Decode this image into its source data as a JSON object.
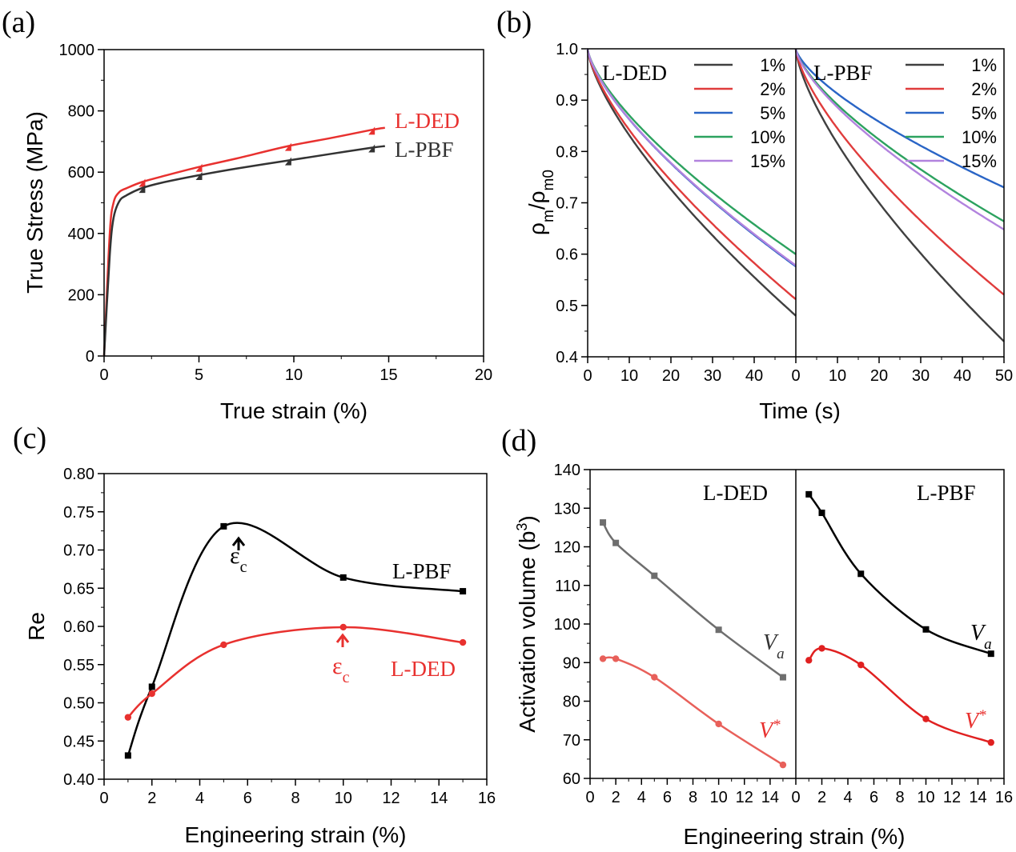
{
  "panels": {
    "a": {
      "label": "(a)",
      "xlabel": "True strain (%)",
      "ylabel": "True Stress (MPa)",
      "xlim": [
        0,
        20
      ],
      "ylim": [
        0,
        1000
      ],
      "xticks": [
        0,
        5,
        10,
        15,
        20
      ],
      "yticks": [
        0,
        200,
        400,
        600,
        800,
        1000
      ],
      "annotations": [
        {
          "text": "L-DED",
          "color": "#e8312f"
        },
        {
          "text": "L-PBF",
          "color": "#333333"
        }
      ]
    },
    "b": {
      "label": "(b)",
      "xlabel": "Time (s)",
      "ylabel_main": "ρ",
      "ylabel_sub1": "m",
      "ylabel_slash": "/ρ",
      "ylabel_sub2": "m0",
      "ylim": [
        0.4,
        1.0
      ],
      "yticks": [
        "0.4",
        "0.5",
        "0.6",
        "0.7",
        "0.8",
        "0.9",
        "1.0"
      ],
      "left_xticks": [
        "0",
        "10",
        "20",
        "30",
        "40"
      ],
      "right_xticks": [
        "0",
        "10",
        "20",
        "30",
        "40",
        "50"
      ],
      "left_title": "L-DED",
      "right_title": "L-PBF",
      "legend_left": [
        "1%",
        "2%",
        "5%",
        "10%",
        "15%"
      ],
      "legend_right": [
        "1%",
        "2%",
        "5%",
        "10%",
        "15%"
      ]
    },
    "c": {
      "label": "(c)",
      "xlabel": "Engineering strain (%)",
      "ylabel": "Re",
      "xticks": [
        "0",
        "2",
        "4",
        "6",
        "8",
        "10",
        "12",
        "14",
        "16"
      ],
      "yticks": [
        "0.40",
        "0.45",
        "0.50",
        "0.55",
        "0.60",
        "0.65",
        "0.70",
        "0.75",
        "0.80"
      ],
      "series_labels": {
        "pbf": "L-PBF",
        "ded": "L-DED"
      },
      "ann_main": "ε",
      "ann_sub": "c"
    },
    "d": {
      "label": "(d)",
      "xlabel": "Engineering strain (%)",
      "ylabel_main": "Activation volume (b",
      "ylabel_sup": "3",
      "ylabel_end": ")",
      "yticks": [
        "60",
        "70",
        "80",
        "90",
        "100",
        "110",
        "120",
        "130",
        "140"
      ],
      "left_xticks": [
        "0",
        "2",
        "4",
        "6",
        "8",
        "10",
        "12",
        "14"
      ],
      "right_xticks": [
        "0",
        "2",
        "4",
        "6",
        "8",
        "10",
        "12",
        "14",
        "16"
      ],
      "left_title": "L-DED",
      "right_title": "L-PBF",
      "va_main": "V",
      "va_sub": "a",
      "vs_main": "V",
      "vs_sup": "*"
    }
  },
  "chart_data": [
    {
      "panel": "a",
      "type": "line",
      "xlim": [
        0,
        20
      ],
      "ylim": [
        0,
        1000
      ],
      "series": [
        {
          "name": "L-DED",
          "color": "#e8312f",
          "x": [
            0,
            0.3,
            0.5,
            0.8,
            1.2,
            2,
            3,
            5,
            7,
            9.7,
            12,
            14.1,
            14.8
          ],
          "y": [
            0,
            400,
            500,
            535,
            548,
            568,
            585,
            617,
            645,
            685,
            712,
            738,
            745
          ]
        },
        {
          "name": "L-PBF",
          "color": "#333333",
          "x": [
            0,
            0.3,
            0.5,
            0.8,
            1.2,
            2,
            3,
            5,
            7,
            9.7,
            12,
            14.1,
            14.8
          ],
          "y": [
            0,
            330,
            450,
            505,
            525,
            548,
            565,
            590,
            612,
            638,
            660,
            680,
            685
          ]
        }
      ]
    },
    {
      "panel": "b",
      "type": "line",
      "ylim": [
        0.4,
        1.0
      ],
      "xlim": [
        0,
        50
      ],
      "subplots": [
        {
          "name": "L-DED",
          "series": [
            {
              "name": "1%",
              "color": "#404040",
              "end": 0.48
            },
            {
              "name": "2%",
              "color": "#e03c3c",
              "end": 0.512
            },
            {
              "name": "5%",
              "color": "#2a65c6",
              "end": 0.576
            },
            {
              "name": "10%",
              "color": "#2ca25f",
              "end": 0.6
            },
            {
              "name": "15%",
              "color": "#b283de",
              "end": 0.578
            }
          ]
        },
        {
          "name": "L-PBF",
          "series": [
            {
              "name": "1%",
              "color": "#404040",
              "end": 0.43
            },
            {
              "name": "2%",
              "color": "#e03c3c",
              "end": 0.521
            },
            {
              "name": "5%",
              "color": "#2a65c6",
              "end": 0.73
            },
            {
              "name": "10%",
              "color": "#2ca25f",
              "end": 0.664
            },
            {
              "name": "15%",
              "color": "#b283de",
              "end": 0.648
            }
          ]
        }
      ]
    },
    {
      "panel": "c",
      "type": "line",
      "xlim": [
        0,
        16
      ],
      "ylim": [
        0.4,
        0.8
      ],
      "series": [
        {
          "name": "L-PBF",
          "color": "#000000",
          "x": [
            1,
            2,
            5,
            10,
            15
          ],
          "y": [
            0.431,
            0.521,
            0.731,
            0.664,
            0.646
          ]
        },
        {
          "name": "L-DED",
          "color": "#e8312f",
          "x": [
            1,
            2,
            5,
            10,
            15
          ],
          "y": [
            0.481,
            0.512,
            0.576,
            0.599,
            0.579
          ]
        }
      ]
    },
    {
      "panel": "d",
      "type": "line",
      "ylim": [
        60,
        140
      ],
      "subplots": [
        {
          "name": "L-DED",
          "xlim": [
            0,
            16
          ],
          "series": [
            {
              "name": "Va",
              "color": "#6e6e6e",
              "x": [
                1,
                2,
                5,
                10,
                15
              ],
              "y": [
                126.3,
                121,
                112.5,
                98.5,
                86.2
              ]
            },
            {
              "name": "V*",
              "color": "#e8605a",
              "x": [
                1,
                2,
                5,
                10,
                15
              ],
              "y": [
                91,
                91,
                86.2,
                74.1,
                63.5
              ]
            }
          ]
        },
        {
          "name": "L-PBF",
          "xlim": [
            0,
            16
          ],
          "series": [
            {
              "name": "Va",
              "color": "#000000",
              "x": [
                1,
                2,
                5,
                10,
                15
              ],
              "y": [
                133.6,
                128.8,
                113,
                98.6,
                92.3
              ]
            },
            {
              "name": "V*",
              "color": "#e02020",
              "x": [
                1,
                2,
                5,
                10,
                15
              ],
              "y": [
                90.6,
                93.7,
                89.4,
                75.4,
                69.3
              ]
            }
          ]
        }
      ]
    }
  ]
}
